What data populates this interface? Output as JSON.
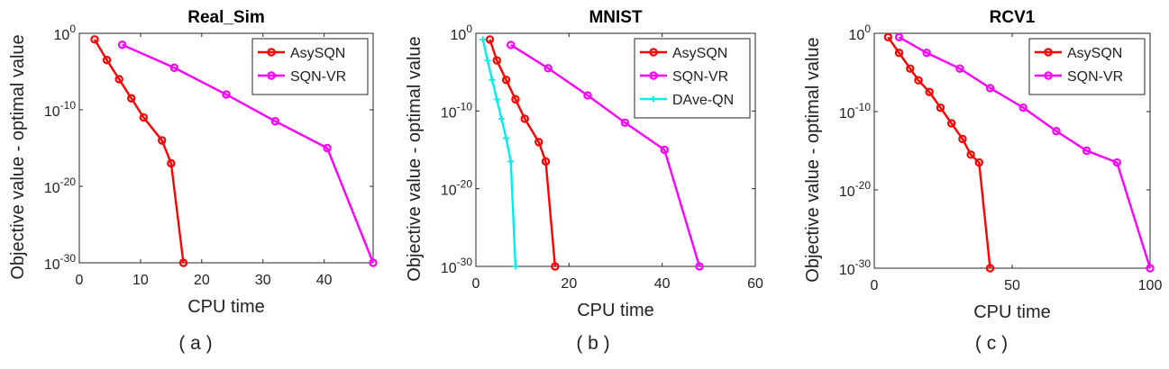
{
  "chart_data": [
    {
      "type": "line",
      "title": "Real_Sim",
      "xlabel": "CPU time",
      "ylabel": "Objective value - optimal value",
      "xlim": [
        0,
        48
      ],
      "ylim_exp": [
        -30,
        0
      ],
      "xticks": [
        0,
        10,
        20,
        30,
        40
      ],
      "yticks": [
        {
          "label": "10",
          "exp": "0",
          "v": 0
        },
        {
          "label": "10",
          "exp": "-10",
          "v": -10
        },
        {
          "label": "10",
          "exp": "-20",
          "v": -20
        },
        {
          "label": "10",
          "exp": "-30",
          "v": -30
        }
      ],
      "legend_position": "top-right",
      "caption": "( a )",
      "series": [
        {
          "name": "AsySQN",
          "color": "#ff0000",
          "marker": "circle",
          "x": [
            2.5,
            4.5,
            6.5,
            8.5,
            10.5,
            13.5,
            15,
            17
          ],
          "log10y": [
            -0.8,
            -3.5,
            -6,
            -8.5,
            -11,
            -14,
            -17,
            -30
          ]
        },
        {
          "name": "SQN-VR",
          "color": "#ff00ff",
          "marker": "circle",
          "x": [
            7,
            15.5,
            24,
            32,
            40.5,
            48
          ],
          "log10y": [
            -1.5,
            -4.5,
            -8,
            -11.5,
            -15,
            -30
          ]
        }
      ]
    },
    {
      "type": "line",
      "title": "MNIST",
      "xlabel": "CPU time",
      "ylabel": "Objective value - optimal value",
      "xlim": [
        0,
        60
      ],
      "ylim_exp": [
        -30,
        0
      ],
      "xticks": [
        0,
        20,
        40,
        60
      ],
      "yticks": [
        {
          "label": "10",
          "exp": "0",
          "v": 0
        },
        {
          "label": "10",
          "exp": "-10",
          "v": -10
        },
        {
          "label": "10",
          "exp": "-20",
          "v": -20
        },
        {
          "label": "10",
          "exp": "-30",
          "v": -30
        }
      ],
      "legend_position": "top-right",
      "caption": "( b )",
      "series": [
        {
          "name": "AsySQN",
          "color": "#ff0000",
          "marker": "circle",
          "x": [
            3,
            4.5,
            6.5,
            8.5,
            10.5,
            13.5,
            15,
            17
          ],
          "log10y": [
            -0.8,
            -3.5,
            -6,
            -8.5,
            -11,
            -14,
            -16.5,
            -30
          ]
        },
        {
          "name": "SQN-VR",
          "color": "#ff00ff",
          "marker": "circle",
          "x": [
            7.5,
            15.5,
            24,
            32,
            40.5,
            48
          ],
          "log10y": [
            -1.5,
            -4.5,
            -8,
            -11.5,
            -15,
            -30
          ]
        },
        {
          "name": "DAve-QN",
          "color": "#00eeee",
          "marker": "plus",
          "x": [
            1.5,
            2.5,
            3.5,
            4.5,
            5.5,
            6.5,
            7.5,
            8.5
          ],
          "log10y": [
            -0.8,
            -3.5,
            -6,
            -8.5,
            -11,
            -13.5,
            -16.5,
            -30
          ]
        }
      ]
    },
    {
      "type": "line",
      "title": "RCV1",
      "xlabel": "CPU time",
      "ylabel": "Objective value - optimal value",
      "xlim": [
        0,
        100
      ],
      "ylim_exp": [
        -30,
        0
      ],
      "xticks": [
        0,
        50,
        100
      ],
      "yticks": [
        {
          "label": "10",
          "exp": "0",
          "v": 0
        },
        {
          "label": "10",
          "exp": "-10",
          "v": -10
        },
        {
          "label": "10",
          "exp": "-20",
          "v": -20
        },
        {
          "label": "10",
          "exp": "-30",
          "v": -30
        }
      ],
      "legend_position": "top-right",
      "caption": "( c )",
      "series": [
        {
          "name": "AsySQN",
          "color": "#ff0000",
          "marker": "circle",
          "x": [
            5,
            9,
            13,
            16,
            20,
            24,
            28,
            32,
            35,
            38,
            42
          ],
          "log10y": [
            -0.5,
            -2.5,
            -4.5,
            -6,
            -7.5,
            -9.5,
            -11.5,
            -13.5,
            -15.5,
            -16.5,
            -30
          ]
        },
        {
          "name": "SQN-VR",
          "color": "#ff00ff",
          "marker": "circle",
          "x": [
            9,
            19,
            31,
            42,
            54,
            66,
            77,
            88,
            100
          ],
          "log10y": [
            -0.5,
            -2.5,
            -4.5,
            -7,
            -9.5,
            -12.5,
            -15,
            -16.5,
            -30
          ]
        }
      ]
    }
  ]
}
